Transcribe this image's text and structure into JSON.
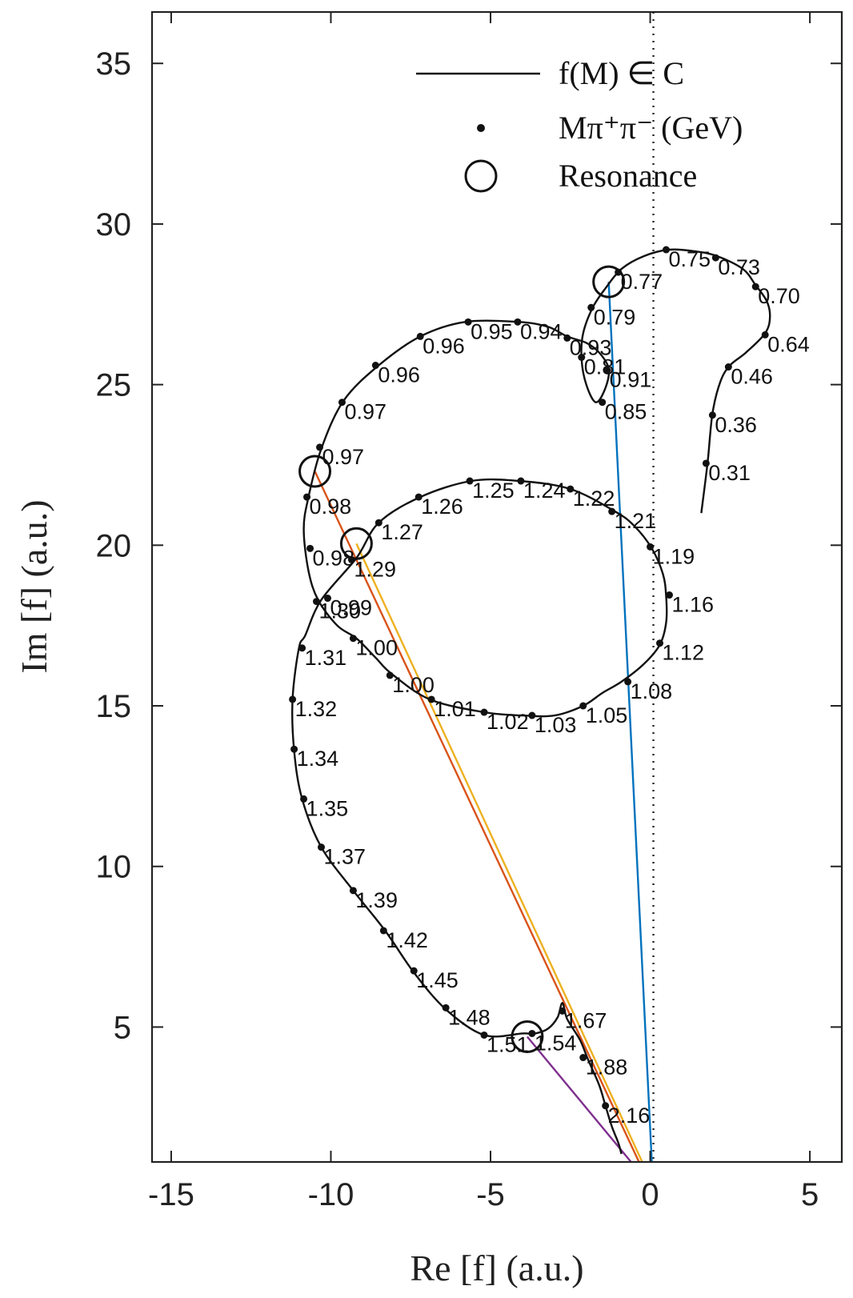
{
  "chart_data": {
    "type": "line",
    "title": "",
    "xlabel": "Re [f] (a.u.)",
    "ylabel": "Im [f] (a.u.)",
    "xlim": [
      -15.6,
      6.0
    ],
    "ylim": [
      0.8,
      36.6
    ],
    "xticks": [
      -15,
      -10,
      -5,
      0,
      5
    ],
    "yticks": [
      5,
      10,
      15,
      20,
      25,
      30,
      35
    ],
    "grid": false,
    "legend_position": "top-right",
    "legend": [
      {
        "label": "f(M) ∈ C",
        "marker": "line"
      },
      {
        "label": "Mπ⁺π⁻ (GeV)",
        "marker": "dot"
      },
      {
        "label": "Resonance",
        "marker": "circle"
      }
    ],
    "reference_line": {
      "axis": "x",
      "value": 0.1,
      "style": "dotted"
    },
    "curve": [
      [
        1.6,
        21.0
      ],
      [
        1.8,
        22.6
      ],
      [
        1.95,
        24.1
      ],
      [
        2.2,
        25.1
      ],
      [
        2.5,
        25.6
      ],
      [
        3.0,
        26.0
      ],
      [
        3.6,
        26.6
      ],
      [
        3.75,
        27.1
      ],
      [
        3.65,
        27.6
      ],
      [
        3.3,
        28.1
      ],
      [
        2.9,
        28.6
      ],
      [
        2.1,
        29.0
      ],
      [
        1.4,
        29.15
      ],
      [
        0.6,
        29.2
      ],
      [
        -0.2,
        29.0
      ],
      [
        -0.9,
        28.6
      ],
      [
        -1.4,
        28.0
      ],
      [
        -1.8,
        27.4
      ],
      [
        -2.1,
        26.6
      ],
      [
        -2.15,
        25.8
      ],
      [
        -2.0,
        25.0
      ],
      [
        -1.7,
        24.45
      ],
      [
        -1.4,
        24.9
      ],
      [
        -1.3,
        25.5
      ],
      [
        -1.6,
        26.0
      ],
      [
        -2.0,
        26.3
      ],
      [
        -2.6,
        26.5
      ],
      [
        -3.2,
        26.8
      ],
      [
        -4.1,
        26.95
      ],
      [
        -5.8,
        26.95
      ],
      [
        -7.2,
        26.5
      ],
      [
        -8.5,
        25.6
      ],
      [
        -9.6,
        24.5
      ],
      [
        -10.3,
        23.0
      ],
      [
        -10.7,
        21.5
      ],
      [
        -10.85,
        20.5
      ],
      [
        -10.7,
        19.2
      ],
      [
        -10.4,
        18.3
      ],
      [
        -9.8,
        17.5
      ],
      [
        -9.2,
        17.1
      ],
      [
        -8.6,
        16.5
      ],
      [
        -8.1,
        16.0
      ],
      [
        -6.9,
        15.2
      ],
      [
        -5.2,
        14.8
      ],
      [
        -4.0,
        14.7
      ],
      [
        -3.0,
        14.7
      ],
      [
        -2.1,
        15.0
      ],
      [
        -1.5,
        15.4
      ],
      [
        -0.9,
        15.75
      ],
      [
        -0.2,
        16.3
      ],
      [
        0.3,
        16.9
      ],
      [
        0.5,
        17.6
      ],
      [
        0.5,
        18.4
      ],
      [
        0.4,
        19.1
      ],
      [
        0.05,
        19.9
      ],
      [
        -0.5,
        20.6
      ],
      [
        -1.1,
        21.05
      ],
      [
        -2.5,
        21.75
      ],
      [
        -4.1,
        22.0
      ],
      [
        -5.6,
        22.0
      ],
      [
        -7.2,
        21.5
      ],
      [
        -8.5,
        20.7
      ],
      [
        -9.2,
        19.6
      ],
      [
        -10.3,
        18.3
      ],
      [
        -10.8,
        17.2
      ],
      [
        -11.0,
        16.8
      ],
      [
        -11.2,
        15.2
      ],
      [
        -11.15,
        13.6
      ],
      [
        -10.9,
        12.1
      ],
      [
        -10.3,
        10.6
      ],
      [
        -9.3,
        9.25
      ],
      [
        -8.3,
        8.0
      ],
      [
        -7.4,
        6.7
      ],
      [
        -6.4,
        5.55
      ],
      [
        -5.2,
        4.75
      ],
      [
        -4.0,
        4.8
      ],
      [
        -3.6,
        4.8
      ],
      [
        -3.2,
        4.95
      ],
      [
        -2.9,
        5.3
      ],
      [
        -2.75,
        5.75
      ],
      [
        -2.6,
        5.25
      ],
      [
        -2.2,
        4.6
      ],
      [
        -1.95,
        4.0
      ],
      [
        -1.6,
        3.2
      ],
      [
        -1.4,
        2.55
      ],
      [
        -1.2,
        1.9
      ],
      [
        -1.0,
        1.4
      ],
      [
        -0.9,
        1.05
      ]
    ],
    "points": [
      {
        "label": "0.31",
        "x": 1.75,
        "y": 22.55
      },
      {
        "label": "0.36",
        "x": 1.95,
        "y": 24.05
      },
      {
        "label": "0.46",
        "x": 2.45,
        "y": 25.55
      },
      {
        "label": "0.64",
        "x": 3.6,
        "y": 26.55
      },
      {
        "label": "0.70",
        "x": 3.3,
        "y": 28.05
      },
      {
        "label": "0.73",
        "x": 2.05,
        "y": 28.95
      },
      {
        "label": "0.75",
        "x": 0.5,
        "y": 29.2
      },
      {
        "label": "0.77",
        "x": -1.0,
        "y": 28.5
      },
      {
        "label": "0.79",
        "x": -1.85,
        "y": 27.4
      },
      {
        "label": "0.81",
        "x": -2.15,
        "y": 25.85
      },
      {
        "label": "0.85",
        "x": -1.5,
        "y": 24.45
      },
      {
        "label": "0.91",
        "x": -1.35,
        "y": 25.45
      },
      {
        "label": "0.93",
        "x": -2.6,
        "y": 26.45
      },
      {
        "label": "0.94",
        "x": -4.15,
        "y": 26.95
      },
      {
        "label": "0.95",
        "x": -5.7,
        "y": 26.95
      },
      {
        "label": "0.96",
        "x": -7.2,
        "y": 26.5
      },
      {
        "label": "0.96",
        "x": -8.6,
        "y": 25.6
      },
      {
        "label": "0.97",
        "x": -9.65,
        "y": 24.45
      },
      {
        "label": "0.97",
        "x": -10.35,
        "y": 23.05
      },
      {
        "label": "0.98",
        "x": -10.75,
        "y": 21.5
      },
      {
        "label": "0.98",
        "x": -10.65,
        "y": 19.9
      },
      {
        "label": "0.99",
        "x": -10.1,
        "y": 18.35
      },
      {
        "label": "1.00",
        "x": -9.3,
        "y": 17.1
      },
      {
        "label": "1.00",
        "x": -8.15,
        "y": 15.95
      },
      {
        "label": "1.01",
        "x": -6.85,
        "y": 15.2
      },
      {
        "label": "1.02",
        "x": -5.2,
        "y": 14.8
      },
      {
        "label": "1.03",
        "x": -3.7,
        "y": 14.7
      },
      {
        "label": "1.05",
        "x": -2.1,
        "y": 15.0
      },
      {
        "label": "1.08",
        "x": -0.7,
        "y": 15.75
      },
      {
        "label": "1.12",
        "x": 0.3,
        "y": 16.95
      },
      {
        "label": "1.16",
        "x": 0.6,
        "y": 18.45
      },
      {
        "label": "1.19",
        "x": 0.0,
        "y": 19.95
      },
      {
        "label": "1.21",
        "x": -1.2,
        "y": 21.05
      },
      {
        "label": "1.22",
        "x": -2.5,
        "y": 21.75
      },
      {
        "label": "1.24",
        "x": -4.05,
        "y": 22.0
      },
      {
        "label": "1.25",
        "x": -5.65,
        "y": 22.0
      },
      {
        "label": "1.26",
        "x": -7.25,
        "y": 21.5
      },
      {
        "label": "1.27",
        "x": -8.5,
        "y": 20.7
      },
      {
        "label": "1.29",
        "x": -9.35,
        "y": 19.55
      },
      {
        "label": "1.30",
        "x": -10.45,
        "y": 18.25
      },
      {
        "label": "1.31",
        "x": -10.9,
        "y": 16.8
      },
      {
        "label": "1.32",
        "x": -11.2,
        "y": 15.2
      },
      {
        "label": "1.34",
        "x": -11.15,
        "y": 13.65
      },
      {
        "label": "1.35",
        "x": -10.85,
        "y": 12.1
      },
      {
        "label": "1.37",
        "x": -10.3,
        "y": 10.6
      },
      {
        "label": "1.39",
        "x": -9.3,
        "y": 9.25
      },
      {
        "label": "1.42",
        "x": -8.35,
        "y": 8.0
      },
      {
        "label": "1.45",
        "x": -7.4,
        "y": 6.75
      },
      {
        "label": "1.48",
        "x": -6.4,
        "y": 5.6
      },
      {
        "label": "1.51",
        "x": -5.2,
        "y": 4.75
      },
      {
        "label": "1.54",
        "x": -3.7,
        "y": 4.8
      },
      {
        "label": "1.67",
        "x": -2.75,
        "y": 5.5
      },
      {
        "label": "1.88",
        "x": -2.1,
        "y": 4.05
      },
      {
        "label": "2.16",
        "x": -1.4,
        "y": 2.55
      }
    ],
    "resonances": [
      {
        "x": -1.3,
        "y": 28.2
      },
      {
        "x": -10.5,
        "y": 22.3
      },
      {
        "x": -9.2,
        "y": 20.05
      },
      {
        "x": -3.85,
        "y": 4.7
      }
    ],
    "lines": [
      {
        "color": "#0072BD",
        "from": [
          -1.3,
          28.2
        ],
        "to": [
          0.05,
          0.8
        ]
      },
      {
        "color": "#D95319",
        "from": [
          -10.5,
          22.3
        ],
        "to": [
          -0.35,
          0.8
        ]
      },
      {
        "color": "#EDB120",
        "from": [
          -9.2,
          20.05
        ],
        "to": [
          -0.25,
          0.8
        ]
      },
      {
        "color": "#7E2F8E",
        "from": [
          -3.85,
          4.7
        ],
        "to": [
          -0.6,
          0.8
        ]
      }
    ]
  }
}
